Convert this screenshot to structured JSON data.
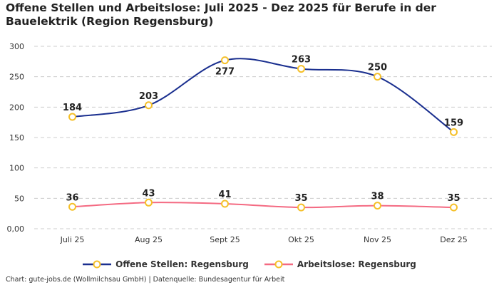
{
  "chart_data": {
    "type": "line",
    "title": "Offene Stellen und Arbeitslose: Juli 2025 - Dez 2025 für Berufe in der Bauelektrik (Region Regensburg)",
    "categories": [
      "Juli 25",
      "Aug 25",
      "Sept 25",
      "Okt 25",
      "Nov 25",
      "Dez 25"
    ],
    "yticks": [
      "0,00",
      "50",
      "100",
      "150",
      "200",
      "250",
      "300"
    ],
    "ylim": [
      0,
      300
    ],
    "grid": true,
    "legend_position": "bottom",
    "series": [
      {
        "name": "Offene Stellen: Regensburg",
        "values": [
          184,
          203,
          277,
          263,
          250,
          159
        ],
        "color": "#1a2f8f",
        "labels_below": [
          false,
          false,
          true,
          false,
          false,
          false
        ]
      },
      {
        "name": "Arbeitslose: Regensburg",
        "values": [
          36,
          43,
          41,
          35,
          38,
          35
        ],
        "color": "#f46a82",
        "labels_below": [
          false,
          false,
          false,
          false,
          false,
          false
        ]
      }
    ],
    "marker_color": "#f5c02a"
  },
  "source": "Chart: gute-jobs.de (Wollmilchsau GmbH) | Datenquelle: Bundesagentur für Arbeit"
}
